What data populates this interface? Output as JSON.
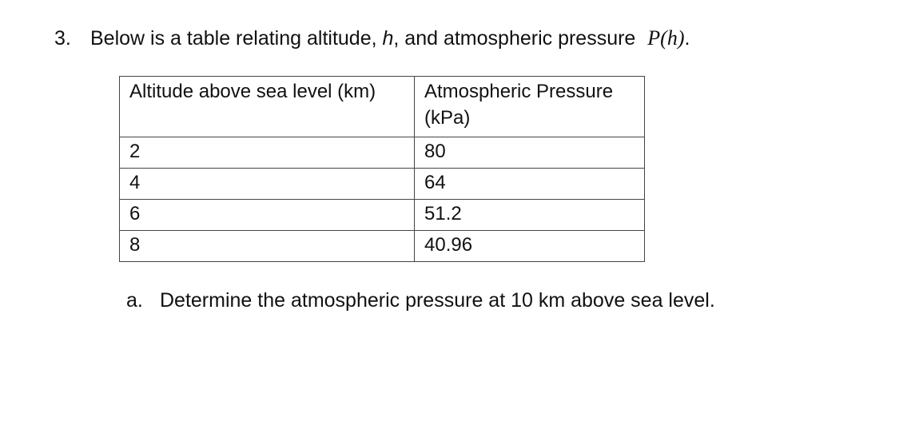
{
  "question": {
    "number": "3.",
    "text_before": "Below is a table relating altitude, ",
    "var_h": "h",
    "text_middle": ", and atmospheric pressure ",
    "function": "P(h)",
    "end": "."
  },
  "table": {
    "headers": [
      "Altitude above sea level (km)",
      "Atmospheric Pressure (kPa)"
    ],
    "rows": [
      [
        "2",
        "80"
      ],
      [
        "4",
        "64"
      ],
      [
        "6",
        "51.2"
      ],
      [
        "8",
        "40.96"
      ]
    ]
  },
  "part_a": {
    "label": "a.",
    "text": "Determine the atmospheric pressure at 10 km above sea level."
  }
}
